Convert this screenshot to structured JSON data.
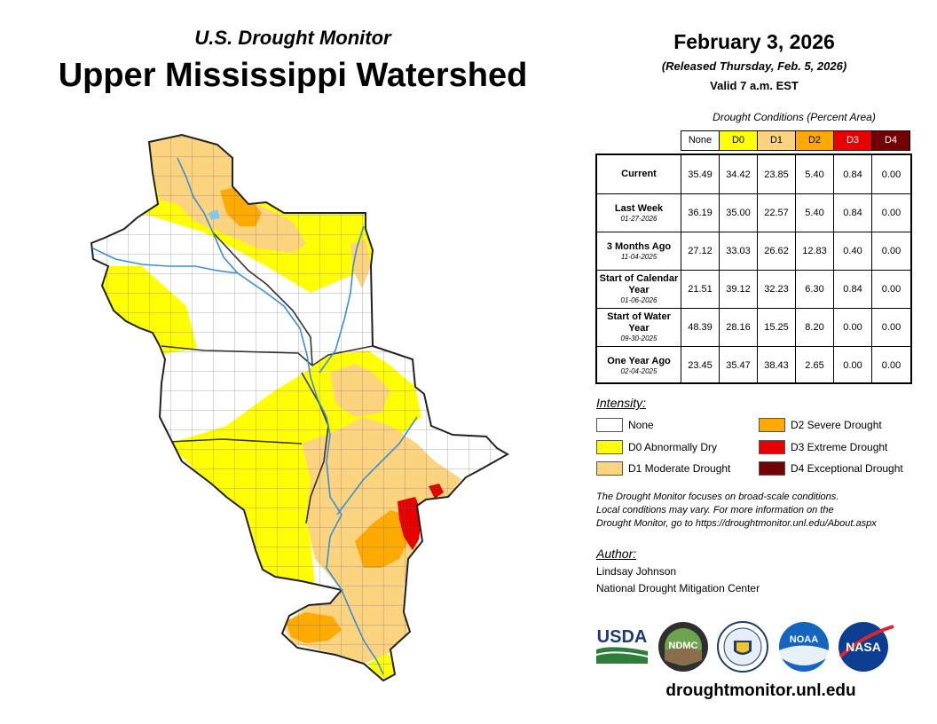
{
  "header": {
    "subtitle": "U.S. Drought Monitor",
    "title": "Upper Mississippi Watershed",
    "date": "February 3, 2026",
    "released": "(Released Thursday, Feb. 5, 2026)",
    "valid": "Valid 7 a.m. EST"
  },
  "table": {
    "caption": "Drought Conditions (Percent Area)",
    "columns": [
      {
        "label": "None",
        "color": "#ffffff",
        "text_color": "#000000"
      },
      {
        "label": "D0",
        "color": "#ffff00",
        "text_color": "#000000"
      },
      {
        "label": "D1",
        "color": "#fcd37f",
        "text_color": "#000000"
      },
      {
        "label": "D2",
        "color": "#ffaa00",
        "text_color": "#000000"
      },
      {
        "label": "D3",
        "color": "#e60000",
        "text_color": "#ffffff"
      },
      {
        "label": "D4",
        "color": "#730000",
        "text_color": "#ffffff"
      }
    ],
    "rows": [
      {
        "name": "Current",
        "date": "",
        "values": [
          "35.49",
          "34.42",
          "23.85",
          "5.40",
          "0.84",
          "0.00"
        ]
      },
      {
        "name": "Last Week",
        "date": "01-27-2026",
        "values": [
          "36.19",
          "35.00",
          "22.57",
          "5.40",
          "0.84",
          "0.00"
        ]
      },
      {
        "name": "3 Months Ago",
        "date": "11-04-2025",
        "values": [
          "27.12",
          "33.03",
          "26.62",
          "12.83",
          "0.40",
          "0.00"
        ]
      },
      {
        "name": "Start of Calendar Year",
        "date": "01-06-2026",
        "values": [
          "21.51",
          "39.12",
          "32.23",
          "6.30",
          "0.84",
          "0.00"
        ]
      },
      {
        "name": "Start of Water Year",
        "date": "09-30-2025",
        "values": [
          "48.39",
          "28.16",
          "15.25",
          "8.20",
          "0.00",
          "0.00"
        ]
      },
      {
        "name": "One Year Ago",
        "date": "02-04-2025",
        "values": [
          "23.45",
          "35.47",
          "38.43",
          "2.65",
          "0.00",
          "0.00"
        ]
      }
    ]
  },
  "legend": {
    "title": "Intensity:",
    "items": [
      {
        "label": "None",
        "color": "#ffffff"
      },
      {
        "label": "D0 Abnormally Dry",
        "color": "#ffff00"
      },
      {
        "label": "D1 Moderate Drought",
        "color": "#fcd37f"
      },
      {
        "label": "D2 Severe Drought",
        "color": "#ffaa00"
      },
      {
        "label": "D3 Extreme Drought",
        "color": "#e60000"
      },
      {
        "label": "D4 Exceptional Drought",
        "color": "#730000"
      }
    ]
  },
  "note": {
    "line1": "The Drought Monitor focuses on broad-scale conditions.",
    "line2": "Local conditions may vary. For more information on the",
    "line3": "Drought Monitor, go to https://droughtmonitor.unl.edu/About.aspx"
  },
  "author": {
    "title": "Author:",
    "name": "Lindsay Johnson",
    "org": "National Drought Mitigation Center"
  },
  "logos": {
    "usda": "USDA",
    "ndmc": "NDMC",
    "noaa": "NOAA",
    "nasa": "NASA"
  },
  "website": "droughtmonitor.unl.edu",
  "colors": {
    "none": "#ffffff",
    "d0": "#ffff00",
    "d1": "#fcd37f",
    "d2": "#ffaa00",
    "d3": "#e60000",
    "d4": "#730000",
    "water": "#4aa3df"
  }
}
